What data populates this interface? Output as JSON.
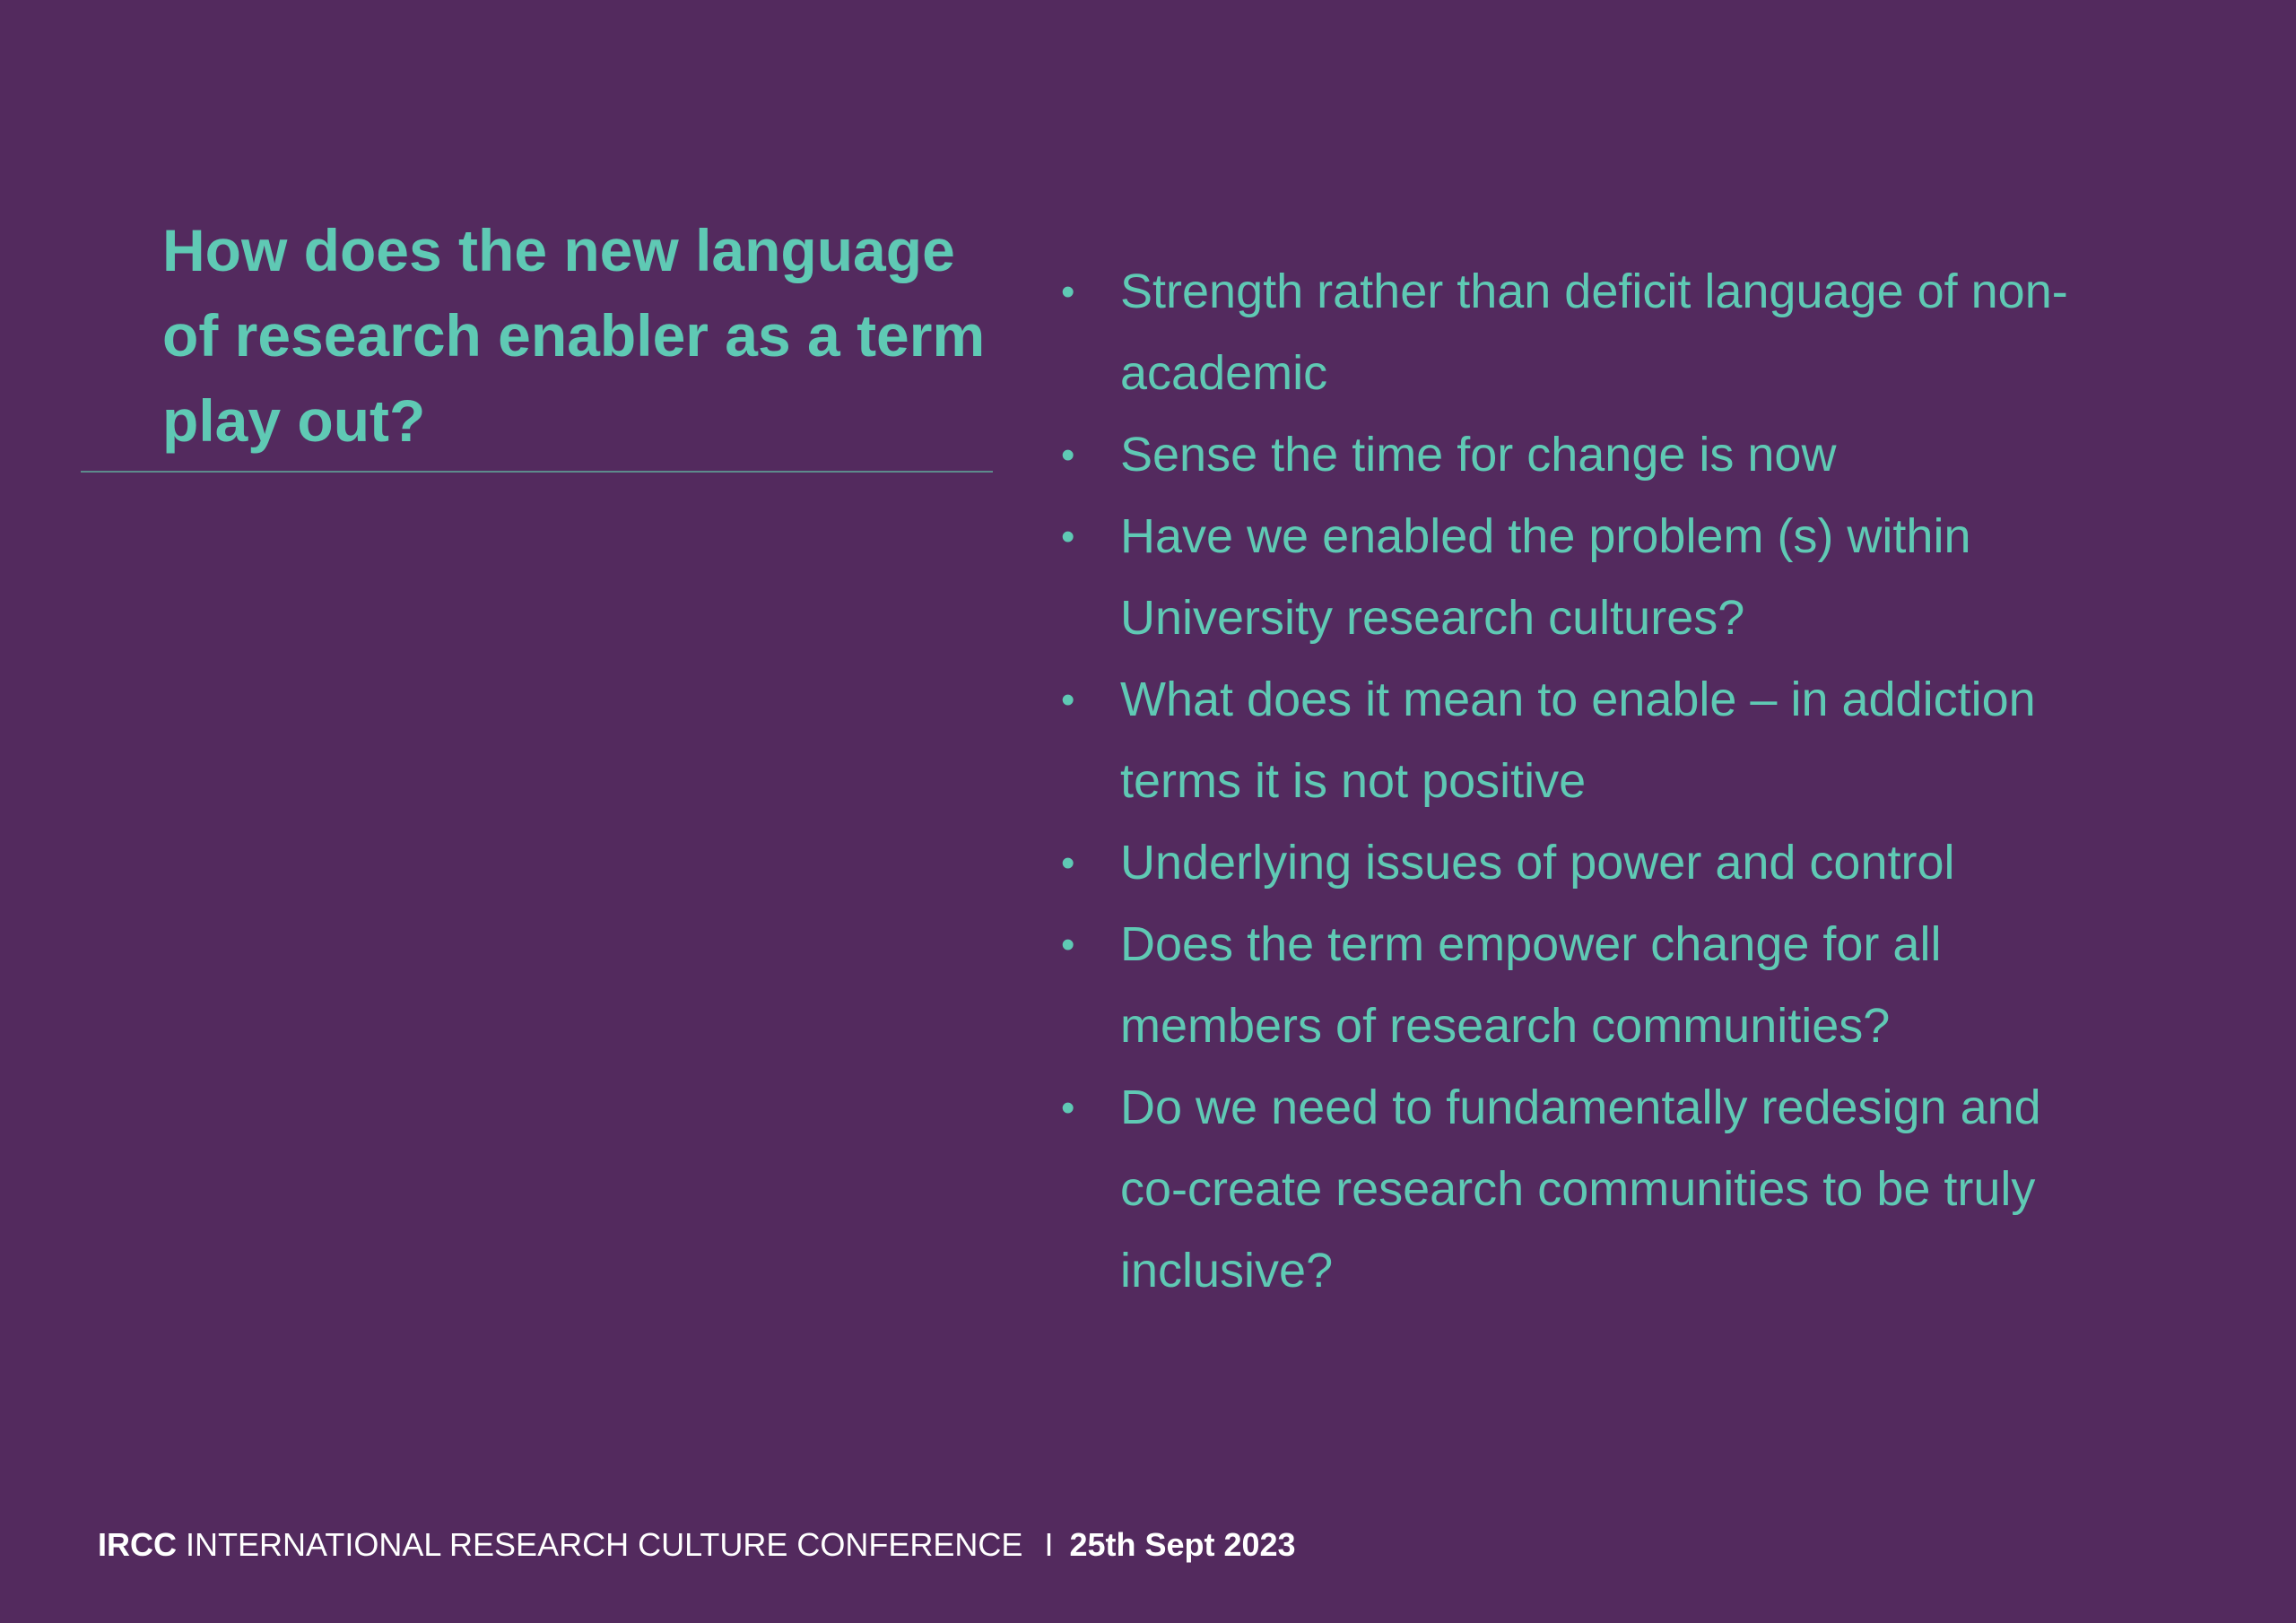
{
  "slide": {
    "title": "How does the new language of research enabler as a term play out?",
    "bullets": [
      "Strength rather than deficit language of non-academic",
      "Sense the time for change is now",
      "Have we enabled the problem (s) within University research cultures?",
      "What does it mean to enable – in addiction terms it is not positive",
      "Underlying issues of power and control",
      "Does the term empower change for all members of research communities?",
      "Do we need to fundamentally redesign and co-create research communities to be truly inclusive?"
    ],
    "footer": {
      "acronym": "IRCC",
      "name": "INTERNATIONAL RESEARCH CULTURE CONFERENCE",
      "separator": "I",
      "date": "25th Sept 2023"
    }
  }
}
